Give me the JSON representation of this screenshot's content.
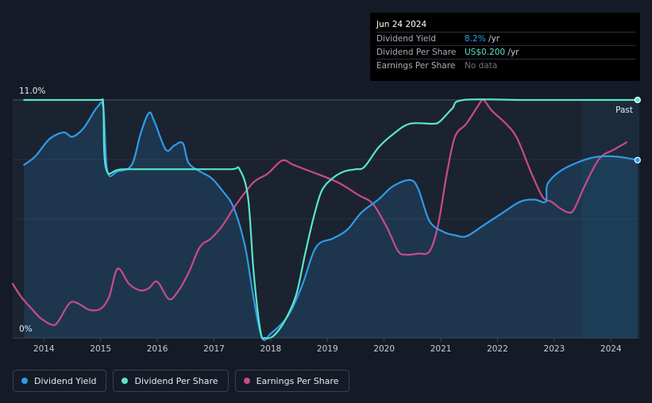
{
  "tooltip": {
    "date": "Jun 24 2024",
    "rows": [
      {
        "label": "Dividend Yield",
        "value": "8.2%",
        "unit": " /yr",
        "color": "#2e9be8"
      },
      {
        "label": "Dividend Per Share",
        "value": "US$0.200",
        "unit": " /yr",
        "color": "#58e6c9"
      },
      {
        "label": "Earnings Per Share",
        "value": "No data",
        "unit": "",
        "color": "#6e737b"
      }
    ]
  },
  "legend": [
    {
      "label": "Dividend Yield",
      "color": "#2e9be8"
    },
    {
      "label": "Dividend Per Share",
      "color": "#58e6c9"
    },
    {
      "label": "Earnings Per Share",
      "color": "#c94a8b"
    }
  ],
  "chart_data": {
    "type": "line",
    "past_label": "Past",
    "y_top_label": "11.0%",
    "y_bottom_label": "0%",
    "ylim": [
      0,
      11
    ],
    "xlim": [
      2013.45,
      2024.5
    ],
    "x_ticks": [
      2014,
      2015,
      2016,
      2017,
      2018,
      2019,
      2020,
      2021,
      2022,
      2023,
      2024
    ],
    "x_tick_labels": [
      "2014",
      "2015",
      "2016",
      "2017",
      "2018",
      "2019",
      "2020",
      "2021",
      "2022",
      "2023",
      "2024"
    ],
    "forecast_start": 2023.48,
    "series": [
      {
        "name": "Dividend Yield",
        "color": "#2e9be8",
        "points": [
          [
            2013.65,
            8.0
          ],
          [
            2013.85,
            8.4
          ],
          [
            2014.1,
            9.2
          ],
          [
            2014.35,
            9.5
          ],
          [
            2014.5,
            9.3
          ],
          [
            2014.7,
            9.7
          ],
          [
            2014.95,
            10.7
          ],
          [
            2015.05,
            10.6
          ],
          [
            2015.12,
            7.7
          ],
          [
            2015.3,
            7.7
          ],
          [
            2015.55,
            8.0
          ],
          [
            2015.7,
            9.4
          ],
          [
            2015.85,
            10.4
          ],
          [
            2015.95,
            10.0
          ],
          [
            2016.15,
            8.7
          ],
          [
            2016.3,
            8.9
          ],
          [
            2016.45,
            9.0
          ],
          [
            2016.55,
            8.1
          ],
          [
            2016.75,
            7.7
          ],
          [
            2016.95,
            7.4
          ],
          [
            2017.15,
            6.8
          ],
          [
            2017.35,
            6.0
          ],
          [
            2017.55,
            4.2
          ],
          [
            2017.7,
            1.8
          ],
          [
            2017.85,
            0.0
          ],
          [
            2018.0,
            0.2
          ],
          [
            2018.3,
            1.0
          ],
          [
            2018.55,
            2.4
          ],
          [
            2018.8,
            4.2
          ],
          [
            2019.1,
            4.6
          ],
          [
            2019.35,
            5.0
          ],
          [
            2019.6,
            5.8
          ],
          [
            2019.9,
            6.4
          ],
          [
            2020.15,
            7.0
          ],
          [
            2020.45,
            7.3
          ],
          [
            2020.6,
            6.9
          ],
          [
            2020.8,
            5.4
          ],
          [
            2021.05,
            4.9
          ],
          [
            2021.25,
            4.75
          ],
          [
            2021.45,
            4.7
          ],
          [
            2021.75,
            5.2
          ],
          [
            2022.1,
            5.8
          ],
          [
            2022.4,
            6.3
          ],
          [
            2022.65,
            6.4
          ],
          [
            2022.85,
            6.3
          ],
          [
            2022.88,
            7.1
          ],
          [
            2023.1,
            7.7
          ],
          [
            2023.4,
            8.1
          ],
          [
            2023.7,
            8.35
          ],
          [
            2023.95,
            8.4
          ],
          [
            2024.2,
            8.35
          ],
          [
            2024.47,
            8.22
          ]
        ]
      },
      {
        "name": "Dividend Per Share",
        "color": "#58e6c9",
        "points": [
          [
            2013.65,
            11.0
          ],
          [
            2014.9,
            11.0
          ],
          [
            2015.02,
            11.0
          ],
          [
            2015.05,
            10.7
          ],
          [
            2015.1,
            7.8
          ],
          [
            2015.4,
            7.8
          ],
          [
            2016.5,
            7.8
          ],
          [
            2017.3,
            7.8
          ],
          [
            2017.45,
            7.8
          ],
          [
            2017.6,
            6.5
          ],
          [
            2017.7,
            3.0
          ],
          [
            2017.82,
            0.3
          ],
          [
            2017.9,
            0.0
          ],
          [
            2018.05,
            0.1
          ],
          [
            2018.25,
            0.8
          ],
          [
            2018.45,
            2.0
          ],
          [
            2018.6,
            3.8
          ],
          [
            2018.75,
            5.5
          ],
          [
            2018.9,
            6.8
          ],
          [
            2019.1,
            7.4
          ],
          [
            2019.3,
            7.7
          ],
          [
            2019.5,
            7.8
          ],
          [
            2019.65,
            7.9
          ],
          [
            2019.9,
            8.8
          ],
          [
            2020.15,
            9.4
          ],
          [
            2020.45,
            9.9
          ],
          [
            2020.85,
            9.9
          ],
          [
            2020.98,
            10.0
          ],
          [
            2021.2,
            10.6
          ],
          [
            2021.4,
            11.0
          ],
          [
            2022.5,
            11.0
          ],
          [
            2023.5,
            11.0
          ],
          [
            2024.47,
            11.0
          ]
        ]
      },
      {
        "name": "Earnings Per Share",
        "color": "#c94a8b",
        "points": [
          [
            2013.45,
            2.5
          ],
          [
            2013.6,
            1.9
          ],
          [
            2013.8,
            1.3
          ],
          [
            2013.95,
            0.9
          ],
          [
            2014.15,
            0.6
          ],
          [
            2014.25,
            0.75
          ],
          [
            2014.45,
            1.6
          ],
          [
            2014.6,
            1.6
          ],
          [
            2014.8,
            1.3
          ],
          [
            2015.0,
            1.35
          ],
          [
            2015.15,
            1.9
          ],
          [
            2015.3,
            3.2
          ],
          [
            2015.5,
            2.5
          ],
          [
            2015.7,
            2.2
          ],
          [
            2015.85,
            2.3
          ],
          [
            2016.0,
            2.6
          ],
          [
            2016.2,
            1.8
          ],
          [
            2016.35,
            2.1
          ],
          [
            2016.55,
            3.0
          ],
          [
            2016.75,
            4.2
          ],
          [
            2016.95,
            4.6
          ],
          [
            2017.15,
            5.2
          ],
          [
            2017.4,
            6.2
          ],
          [
            2017.7,
            7.2
          ],
          [
            2017.95,
            7.6
          ],
          [
            2018.2,
            8.2
          ],
          [
            2018.4,
            8.0
          ],
          [
            2018.7,
            7.7
          ],
          [
            2019.0,
            7.4
          ],
          [
            2019.25,
            7.1
          ],
          [
            2019.55,
            6.6
          ],
          [
            2019.8,
            6.2
          ],
          [
            2020.05,
            5.1
          ],
          [
            2020.25,
            4.0
          ],
          [
            2020.4,
            3.85
          ],
          [
            2020.6,
            3.9
          ],
          [
            2020.8,
            4.0
          ],
          [
            2020.95,
            5.2
          ],
          [
            2021.1,
            7.5
          ],
          [
            2021.25,
            9.3
          ],
          [
            2021.45,
            9.9
          ],
          [
            2021.65,
            10.7
          ],
          [
            2021.75,
            11.0
          ],
          [
            2021.9,
            10.5
          ],
          [
            2022.15,
            9.9
          ],
          [
            2022.35,
            9.2
          ],
          [
            2022.6,
            7.6
          ],
          [
            2022.8,
            6.5
          ],
          [
            2022.95,
            6.3
          ],
          [
            2023.1,
            6.0
          ],
          [
            2023.25,
            5.8
          ],
          [
            2023.35,
            5.95
          ],
          [
            2023.55,
            7.1
          ],
          [
            2023.8,
            8.3
          ],
          [
            2024.05,
            8.7
          ],
          [
            2024.25,
            9.0
          ],
          [
            2024.27,
            9.05
          ]
        ]
      }
    ]
  }
}
